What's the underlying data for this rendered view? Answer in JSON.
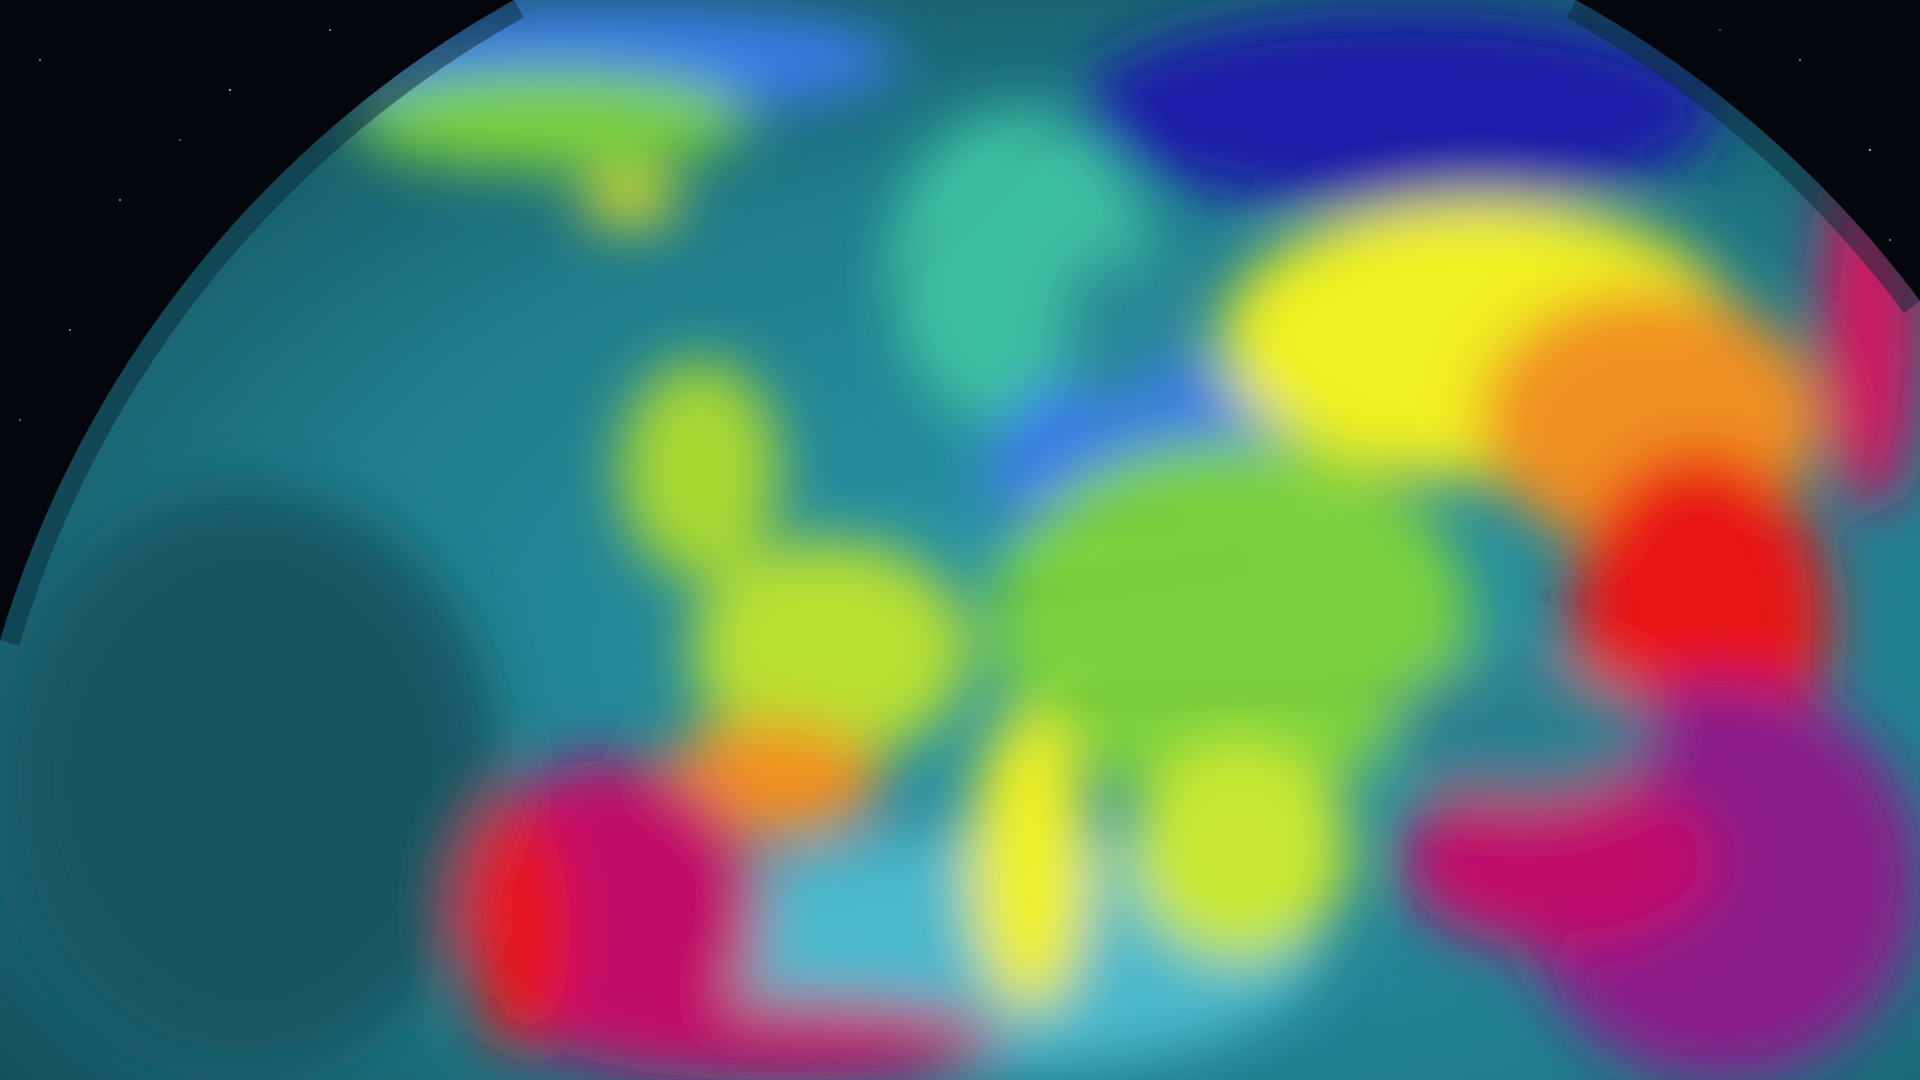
{
  "map": {
    "type": "globe temperature field",
    "palette": {
      "space": "#03060c",
      "ocean": "#1f7c8c",
      "ocean_dark": "#175664",
      "sea_light": "#4cb8cc",
      "cold_deep": "#1a1aa8",
      "cold": "#3a7ae8",
      "cool": "#3cc0a0",
      "mild": "#7cd23c",
      "warm": "#f0f020",
      "hot": "#f09020",
      "very_hot": "#e81818",
      "extreme": "#c0106a",
      "extreme_max": "#8a1a8a",
      "borders": "#1a1a1a"
    }
  }
}
